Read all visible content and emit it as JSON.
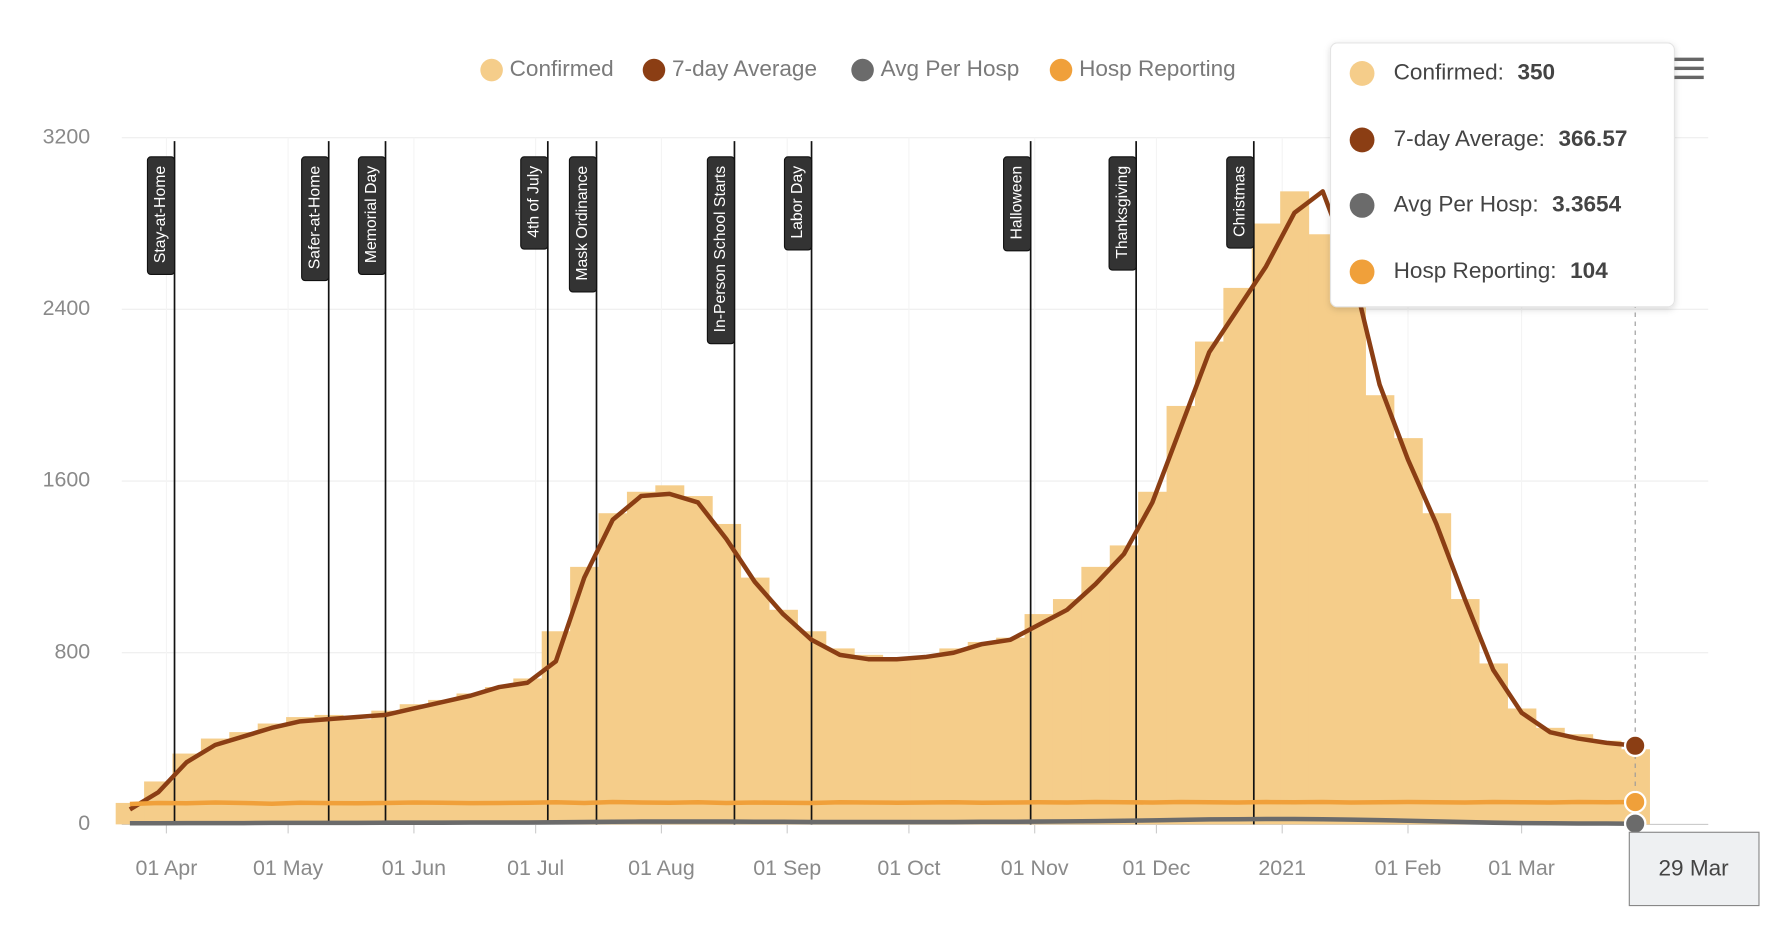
{
  "chart_data": {
    "type": "combo",
    "x": [
      "2020-03-23",
      "2020-03-30",
      "2020-04-06",
      "2020-04-13",
      "2020-04-20",
      "2020-04-27",
      "2020-05-04",
      "2020-05-11",
      "2020-05-18",
      "2020-05-25",
      "2020-06-01",
      "2020-06-08",
      "2020-06-15",
      "2020-06-22",
      "2020-06-29",
      "2020-07-06",
      "2020-07-13",
      "2020-07-20",
      "2020-07-27",
      "2020-08-03",
      "2020-08-10",
      "2020-08-17",
      "2020-08-24",
      "2020-08-31",
      "2020-09-07",
      "2020-09-14",
      "2020-09-21",
      "2020-09-28",
      "2020-10-05",
      "2020-10-12",
      "2020-10-19",
      "2020-10-26",
      "2020-11-02",
      "2020-11-09",
      "2020-11-16",
      "2020-11-23",
      "2020-11-30",
      "2020-12-07",
      "2020-12-14",
      "2020-12-21",
      "2020-12-28",
      "2021-01-04",
      "2021-01-11",
      "2021-01-18",
      "2021-01-25",
      "2021-02-01",
      "2021-02-08",
      "2021-02-15",
      "2021-02-22",
      "2021-03-01",
      "2021-03-08",
      "2021-03-15",
      "2021-03-22",
      "2021-03-29"
    ],
    "series": [
      {
        "name": "Confirmed",
        "type": "bar",
        "color": "#f5cd8a",
        "values": [
          100,
          200,
          330,
          400,
          430,
          470,
          500,
          510,
          490,
          530,
          560,
          580,
          610,
          640,
          680,
          900,
          1200,
          1450,
          1550,
          1580,
          1530,
          1400,
          1150,
          1000,
          900,
          820,
          790,
          780,
          780,
          820,
          850,
          870,
          980,
          1050,
          1200,
          1300,
          1550,
          1950,
          2250,
          2500,
          2800,
          2950,
          2750,
          2450,
          2000,
          1800,
          1450,
          1050,
          750,
          540,
          450,
          420,
          390,
          350
        ]
      },
      {
        "name": "7-day Average",
        "type": "line",
        "color": "#8b3e14",
        "values": [
          70,
          150,
          290,
          370,
          410,
          450,
          480,
          490,
          500,
          510,
          540,
          570,
          600,
          640,
          660,
          760,
          1150,
          1420,
          1530,
          1540,
          1500,
          1330,
          1130,
          980,
          860,
          790,
          770,
          770,
          780,
          800,
          840,
          860,
          930,
          1000,
          1120,
          1260,
          1500,
          1850,
          2200,
          2400,
          2600,
          2850,
          2950,
          2600,
          2050,
          1700,
          1400,
          1050,
          720,
          520,
          430,
          400,
          380,
          366.57
        ]
      },
      {
        "name": "Avg Per Hosp",
        "type": "line",
        "color": "#6b6b6b",
        "values": [
          5,
          5,
          6,
          6,
          6,
          7,
          7,
          7,
          7,
          8,
          8,
          8,
          9,
          9,
          9,
          10,
          11,
          12,
          13,
          13,
          13,
          13,
          12,
          12,
          11,
          11,
          11,
          11,
          11,
          11,
          12,
          12,
          13,
          14,
          15,
          17,
          19,
          21,
          23,
          24,
          25,
          25,
          24,
          22,
          20,
          17,
          14,
          11,
          8,
          6,
          5,
          4,
          4,
          3.3654
        ]
      },
      {
        "name": "Hosp Reporting",
        "type": "line",
        "color": "#f0a03a",
        "values": [
          95,
          100,
          98,
          102,
          100,
          96,
          101,
          99,
          98,
          100,
          102,
          101,
          99,
          100,
          101,
          103,
          100,
          104,
          102,
          101,
          103,
          100,
          102,
          101,
          100,
          103,
          102,
          101,
          102,
          103,
          101,
          102,
          103,
          102,
          104,
          103,
          102,
          104,
          103,
          102,
          104,
          103,
          104,
          102,
          103,
          104,
          103,
          102,
          104,
          103,
          102,
          104,
          103,
          104
        ]
      }
    ],
    "ylim": [
      0,
      3200
    ],
    "yticks": [
      0,
      800,
      1600,
      2400,
      3200
    ],
    "xlim": [
      "2020-03-21",
      "2021-04-16"
    ],
    "xticks": [
      {
        "value": "2020-04-01",
        "label": "01 Apr"
      },
      {
        "value": "2020-05-01",
        "label": "01 May"
      },
      {
        "value": "2020-06-01",
        "label": "01 Jun"
      },
      {
        "value": "2020-07-01",
        "label": "01 Jul"
      },
      {
        "value": "2020-08-01",
        "label": "01 Aug"
      },
      {
        "value": "2020-09-01",
        "label": "01 Sep"
      },
      {
        "value": "2020-10-01",
        "label": "01 Oct"
      },
      {
        "value": "2020-11-01",
        "label": "01 Nov"
      },
      {
        "value": "2020-12-01",
        "label": "01 Dec"
      },
      {
        "value": "2021-01-01",
        "label": "2021"
      },
      {
        "value": "2021-02-01",
        "label": "01 Feb"
      },
      {
        "value": "2021-03-01",
        "label": "01 Mar"
      }
    ],
    "grid": true,
    "legend": "top",
    "annotations": [
      {
        "date": "2020-04-03",
        "label": "Stay-at-Home"
      },
      {
        "date": "2020-05-11",
        "label": "Safer-at-Home"
      },
      {
        "date": "2020-05-25",
        "label": "Memorial Day"
      },
      {
        "date": "2020-07-04",
        "label": "4th of July"
      },
      {
        "date": "2020-07-16",
        "label": "Mask Ordinance"
      },
      {
        "date": "2020-08-19",
        "label": "In-Person School Starts"
      },
      {
        "date": "2020-09-07",
        "label": "Labor Day"
      },
      {
        "date": "2020-10-31",
        "label": "Halloween"
      },
      {
        "date": "2020-11-26",
        "label": "Thanksgiving"
      },
      {
        "date": "2020-12-25",
        "label": "Christmas"
      }
    ],
    "tooltip": {
      "labels": [
        "Confirmed:",
        "7-day Average:",
        "Avg Per Hosp:",
        "Hosp Reporting:"
      ]
    },
    "crosshair_label": "29 Mar"
  }
}
